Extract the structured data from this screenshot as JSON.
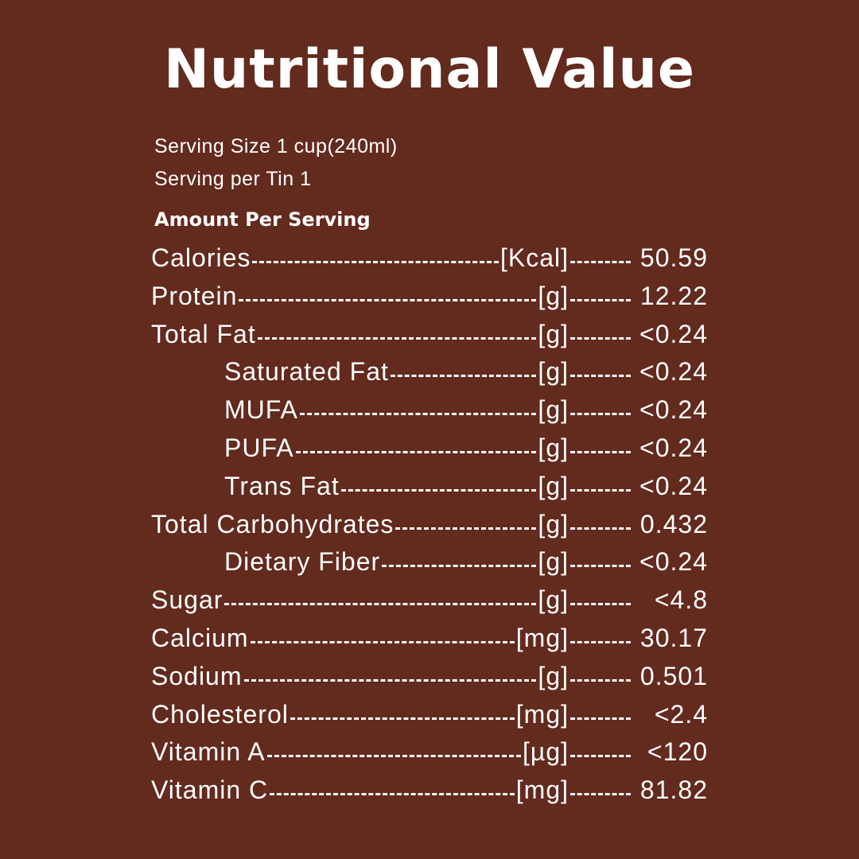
{
  "title": "Nutritional Value",
  "serving_size": "Serving Size 1 cup(240ml)",
  "serving_per_tin": "Serving per Tin 1",
  "heading": "Amount Per Serving",
  "rows": [
    {
      "label": "Calories",
      "unit": "[Kcal]",
      "value": "50.59",
      "indent": false
    },
    {
      "label": "Protein",
      "unit": "[g]",
      "value": "12.22",
      "indent": false
    },
    {
      "label": "Total Fat",
      "unit": "[g]",
      "value": "<0.24",
      "indent": false
    },
    {
      "label": "Saturated Fat",
      "unit": "[g]",
      "value": "<0.24",
      "indent": true
    },
    {
      "label": "MUFA",
      "unit": "[g]",
      "value": "<0.24",
      "indent": true
    },
    {
      "label": "PUFA",
      "unit": "[g]",
      "value": "<0.24",
      "indent": true
    },
    {
      "label": "Trans Fat",
      "unit": "[g]",
      "value": "<0.24",
      "indent": true
    },
    {
      "label": "Total Carbohydrates",
      "unit": "[g]",
      "value": "0.432",
      "indent": false
    },
    {
      "label": "Dietary Fiber",
      "unit": "[g]",
      "value": "<0.24",
      "indent": true
    },
    {
      "label": "Sugar",
      "unit": "[g]",
      "value": "<4.8",
      "indent": false
    },
    {
      "label": "Calcium",
      "unit": "[mg]",
      "value": "30.17",
      "indent": false
    },
    {
      "label": "Sodium",
      "unit": "[g]",
      "value": "0.501",
      "indent": false
    },
    {
      "label": "Cholesterol",
      "unit": "[mg]",
      "value": "<2.4",
      "indent": false
    },
    {
      "label": "Vitamin A",
      "unit": "[µg]",
      "value": "<120",
      "indent": false
    },
    {
      "label": "Vitamin C",
      "unit": "[mg]",
      "value": "81.82",
      "indent": false
    }
  ],
  "colors": {
    "background": "#632a1e",
    "text": "#ffffff"
  }
}
